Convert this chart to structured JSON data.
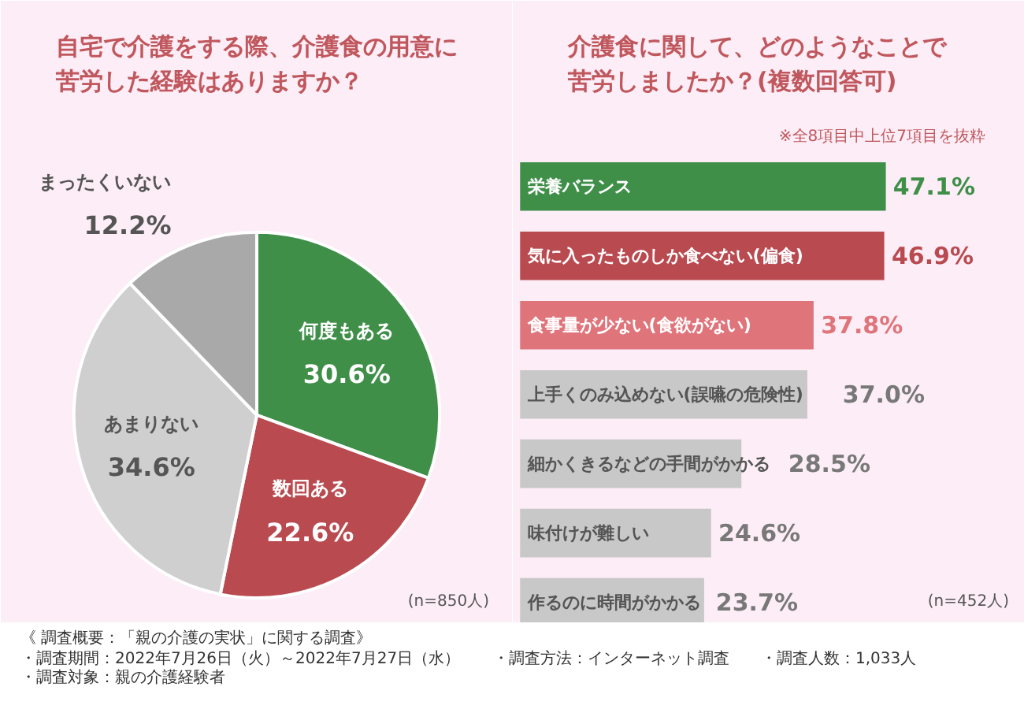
{
  "chart_data": [
    {
      "type": "pie",
      "title": "自宅で介護をする際、介護食の用意に苦労した経験はありますか？",
      "categories": [
        "何度もある",
        "数回ある",
        "あまりない",
        "まったくいない"
      ],
      "values": [
        30.6,
        22.6,
        34.6,
        12.2
      ],
      "colors": [
        "#3f8f49",
        "#b94a50",
        "#cfcfcf",
        "#a9a9a9"
      ],
      "value_labels": [
        "30.6%",
        "22.6%",
        "34.6%",
        "12.2%"
      ],
      "annotations": [
        "(n=850人)"
      ]
    },
    {
      "type": "bar",
      "orientation": "horizontal",
      "title": "介護食に関して、どのようなことで苦労しましたか？(複数回答可)",
      "subtitle": "※全8項目中上位7項目を抜粋",
      "categories": [
        "栄養バランス",
        "気に入ったものしか食べない(偏食)",
        "食事量が少ない(食欲がない)",
        "上手くのみ込めない(誤嚥の危険性)",
        "細かくきるなどの手間がかかる",
        "味付けが難しい",
        "作るのに時間がかかる"
      ],
      "values": [
        47.1,
        46.9,
        37.8,
        37.0,
        28.5,
        24.6,
        23.7
      ],
      "colors": [
        "#3f8f49",
        "#b94a50",
        "#e0747b",
        "#c8c8c8",
        "#c8c8c8",
        "#c8c8c8",
        "#c8c8c8"
      ],
      "value_labels": [
        "47.1%",
        "46.9%",
        "37.8%",
        "37.0%",
        "28.5%",
        "24.6%",
        "23.7%"
      ],
      "tick_labels": false,
      "grid": false,
      "annotations": [
        "(n=452人)",
        "《 調査概要：「親の介護の実状」に関する調査》",
        "・調査期間：2022年7月26日（火）～2022年7月27日（水）",
        "・調査対象：親の介護経験者",
        "・調査方法：インターネット調査",
        "・調査人数：1,033人"
      ]
    }
  ]
}
